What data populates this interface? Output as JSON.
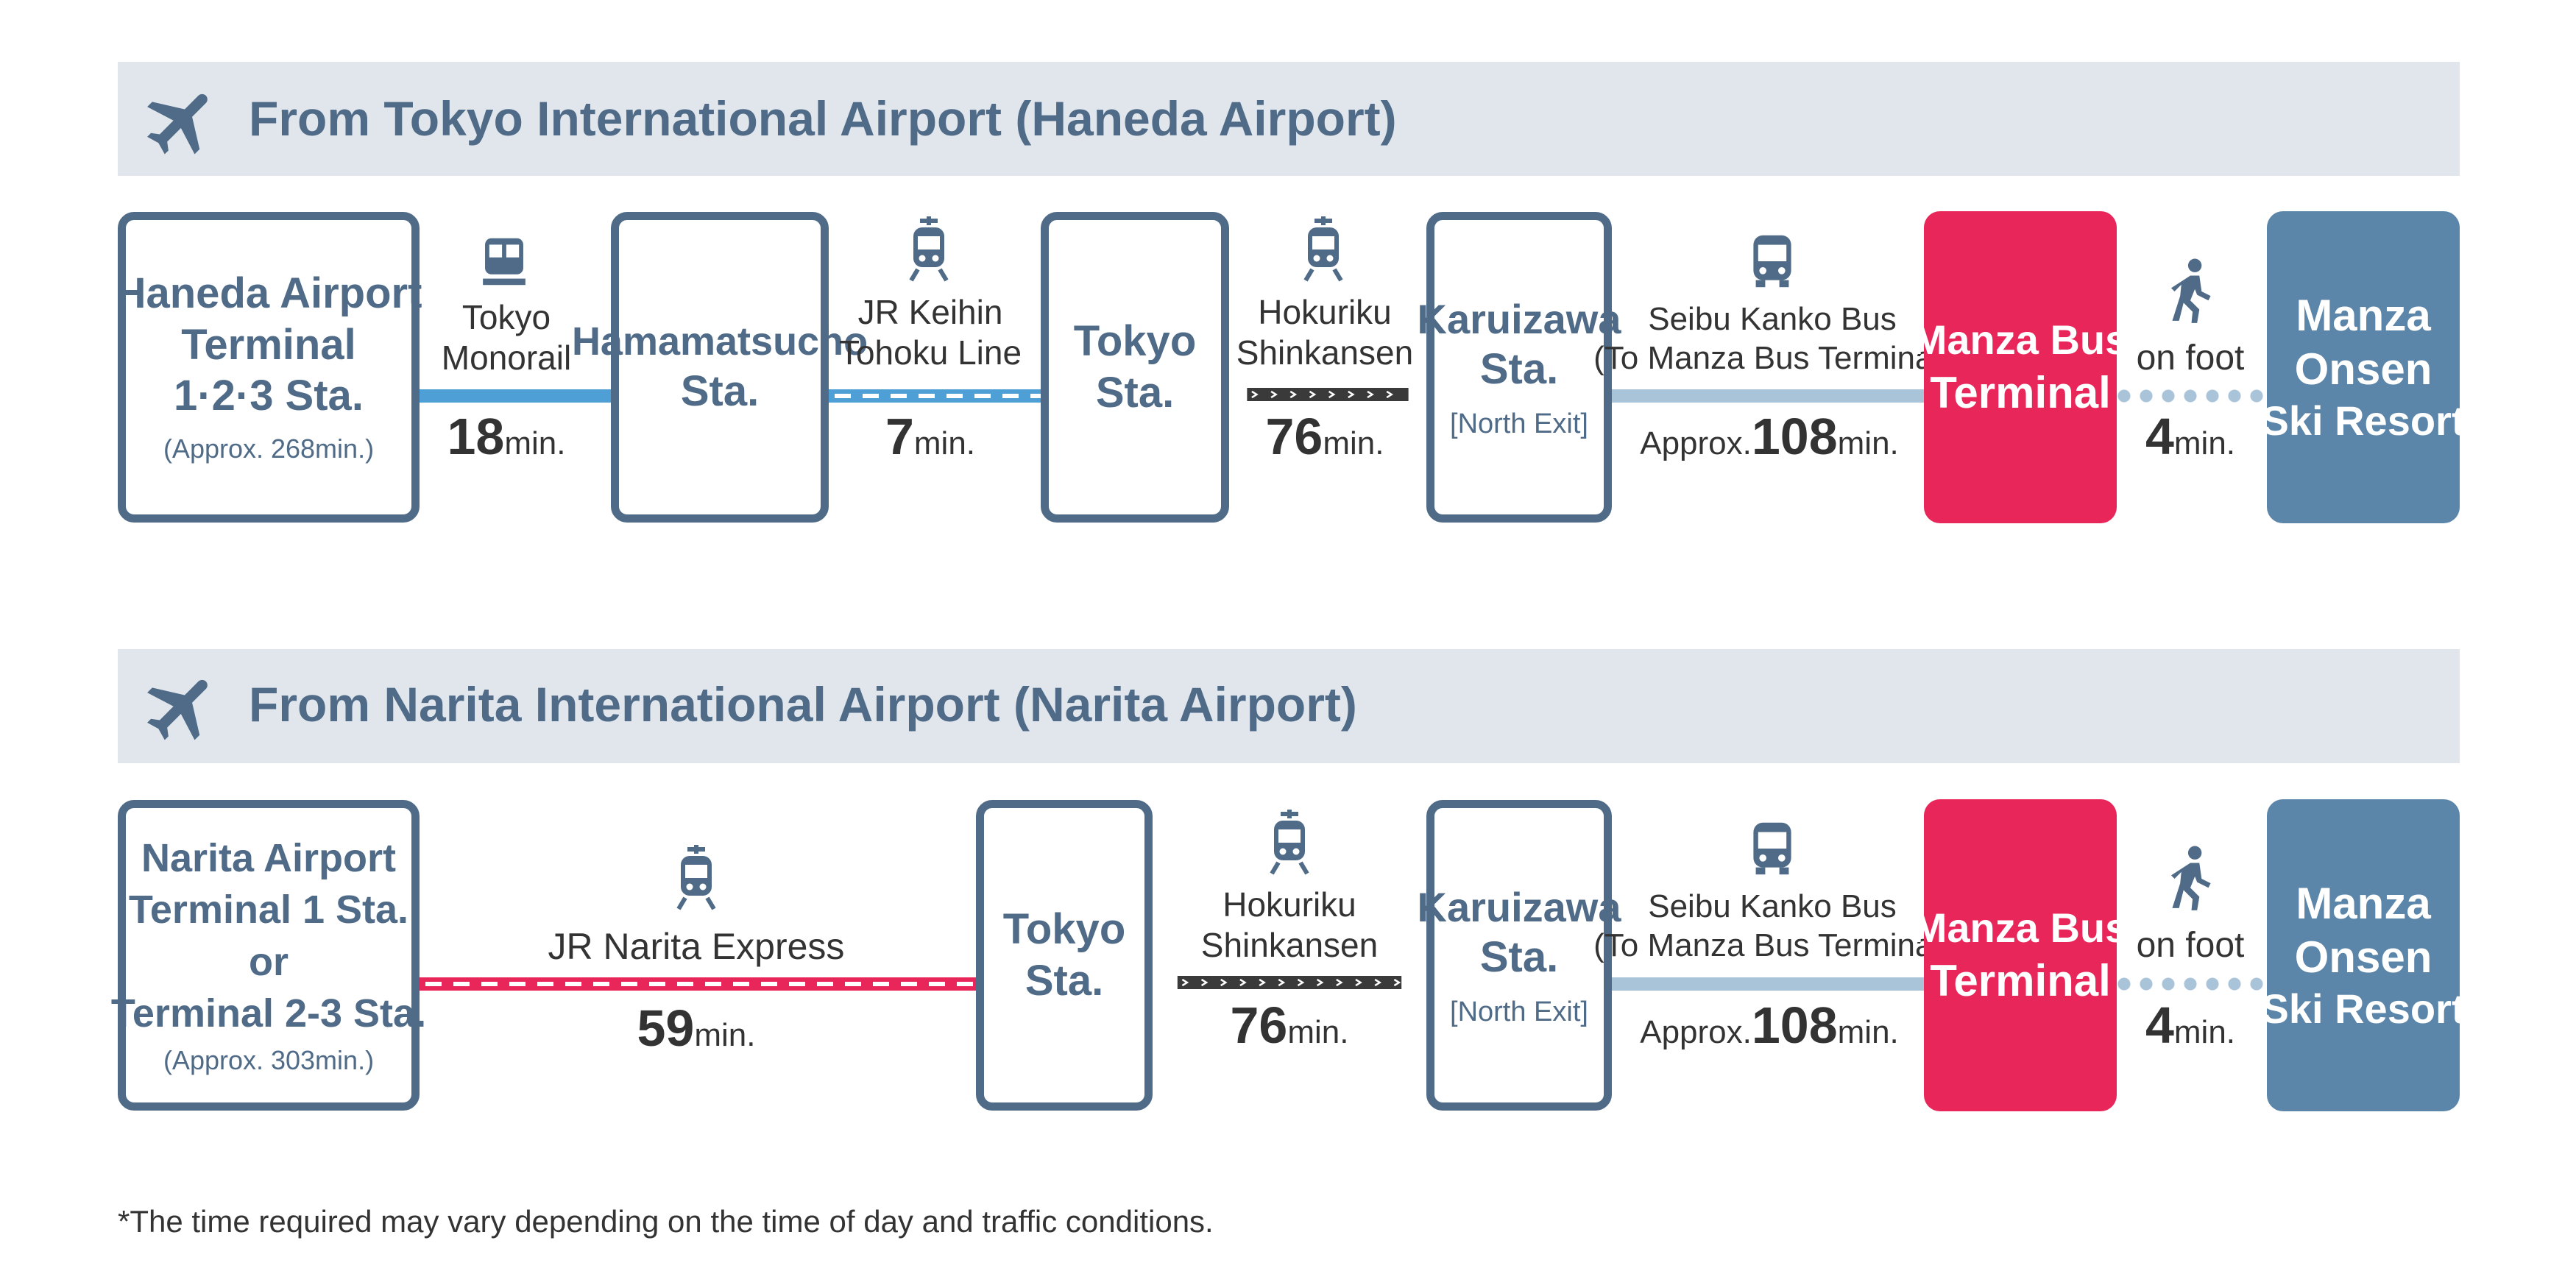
{
  "colors": {
    "station_border": "#4f6b87",
    "band": "#e1e6ed",
    "terminal_red": "#e8265a",
    "resort_blue": "#5c86a9",
    "monorail_blue": "#4d9fd6",
    "bus_line": "#a9c3d9",
    "narita_red": "#e8265a",
    "shinkansen": "#3a3a3a"
  },
  "routes": [
    {
      "title": "From Tokyo International Airport (Haneda Airport)",
      "plane_icon": "airplane-icon",
      "start": {
        "lines": [
          "Haneda Airport",
          "Terminal",
          "1·2·3 Sta."
        ],
        "approx": "(Approx. 268min.)"
      },
      "legs": [
        {
          "icon": "monorail-icon",
          "name_lines": [
            "Tokyo",
            "Monorail"
          ],
          "num": "18",
          "unit": "min."
        },
        {
          "icon": "train-icon",
          "name_lines": [
            "JR Keihin",
            "Tohoku Line"
          ],
          "num": "7",
          "unit": "min."
        },
        {
          "icon": "train-icon",
          "name_lines": [
            "Hokuriku",
            "Shinkansen"
          ],
          "num": "76",
          "unit": "min."
        },
        {
          "icon": "bus-icon",
          "name_lines": [
            "Seibu Kanko Bus",
            "(To Manza Bus Terminal)"
          ],
          "prefix": "Approx.",
          "num": "108",
          "unit": "min."
        },
        {
          "icon": "walking-icon",
          "name_lines": [
            "on foot"
          ],
          "num": "4",
          "unit": "min."
        }
      ],
      "stations": [
        {
          "lines": [
            "Hamamatsucho",
            "Sta."
          ]
        },
        {
          "lines": [
            "Tokyo",
            "Sta."
          ]
        },
        {
          "lines": [
            "Karuizawa",
            "Sta."
          ],
          "note": "[North Exit]"
        }
      ],
      "terminal": {
        "lines": [
          "Manza Bus",
          "Terminal"
        ]
      },
      "destination": {
        "lines": [
          "Manza",
          "Onsen",
          "Ski Resort"
        ]
      }
    },
    {
      "title": "From Narita International Airport (Narita Airport)",
      "plane_icon": "airplane-icon",
      "start": {
        "lines": [
          "Narita Airport",
          "Terminal 1 Sta.",
          "or",
          "Terminal 2-3 Sta."
        ],
        "approx": "(Approx. 303min.)"
      },
      "legs": [
        {
          "icon": "train-icon",
          "name_lines": [
            "JR Narita Express"
          ],
          "num": "59",
          "unit": "min."
        },
        {
          "icon": "train-icon",
          "name_lines": [
            "Hokuriku",
            "Shinkansen"
          ],
          "num": "76",
          "unit": "min."
        },
        {
          "icon": "bus-icon",
          "name_lines": [
            "Seibu Kanko Bus",
            "(To Manza Bus Terminal)"
          ],
          "prefix": "Approx.",
          "num": "108",
          "unit": "min."
        },
        {
          "icon": "walking-icon",
          "name_lines": [
            "on foot"
          ],
          "num": "4",
          "unit": "min."
        }
      ],
      "stations": [
        {
          "lines": [
            "Tokyo",
            "Sta."
          ]
        },
        {
          "lines": [
            "Karuizawa",
            "Sta."
          ],
          "note": "[North Exit]"
        }
      ],
      "terminal": {
        "lines": [
          "Manza Bus",
          "Terminal"
        ]
      },
      "destination": {
        "lines": [
          "Manza",
          "Onsen",
          "Ski Resort"
        ]
      }
    }
  ],
  "footnote": "*The time required may vary depending on the time of day and traffic conditions."
}
